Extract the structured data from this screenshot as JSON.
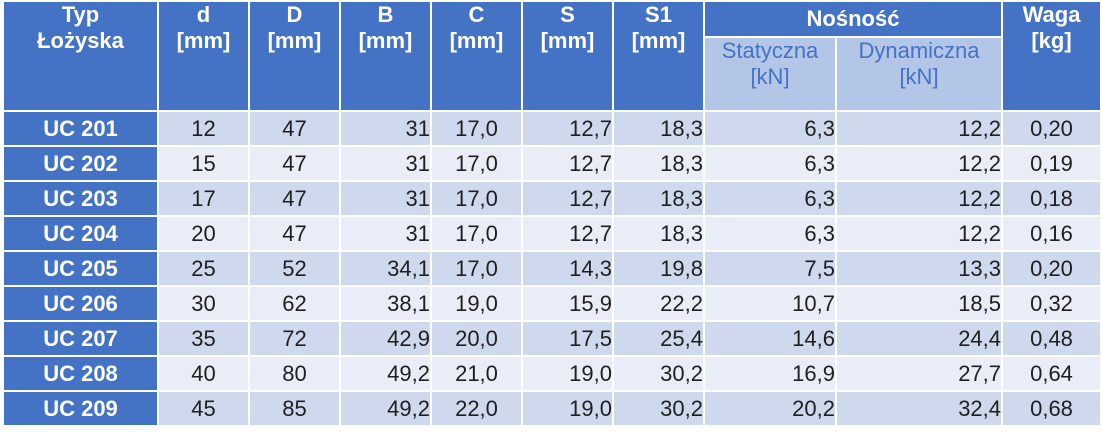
{
  "header": {
    "typ": [
      "Typ",
      "Łożyska"
    ],
    "d": [
      "d",
      "[mm]"
    ],
    "D": [
      "D",
      "[mm]"
    ],
    "B": [
      "B",
      "[mm]"
    ],
    "C": [
      "C",
      "[mm]"
    ],
    "S": [
      "S",
      "[mm]"
    ],
    "S1": [
      "S1",
      "[mm]"
    ],
    "nosnosc": "Nośność",
    "statyczna": [
      "Statyczna",
      "[kN]"
    ],
    "dynamiczna": [
      "Dynamiczna",
      "[kN]"
    ],
    "waga": [
      "Waga",
      "[kg]"
    ]
  },
  "rows": [
    [
      "UC 201",
      "12",
      "47",
      "31",
      "17,0",
      "12,7",
      "18,3",
      "6,3",
      "12,2",
      "0,20"
    ],
    [
      "UC 202",
      "15",
      "47",
      "31",
      "17,0",
      "12,7",
      "18,3",
      "6,3",
      "12,2",
      "0,19"
    ],
    [
      "UC 203",
      "17",
      "47",
      "31",
      "17,0",
      "12,7",
      "18,3",
      "6,3",
      "12,2",
      "0,18"
    ],
    [
      "UC 204",
      "20",
      "47",
      "31",
      "17,0",
      "12,7",
      "18,3",
      "6,3",
      "12,2",
      "0,16"
    ],
    [
      "UC 205",
      "25",
      "52",
      "34,1",
      "17,0",
      "14,3",
      "19,8",
      "7,5",
      "13,3",
      "0,20"
    ],
    [
      "UC 206",
      "30",
      "62",
      "38,1",
      "19,0",
      "15,9",
      "22,2",
      "10,7",
      "18,5",
      "0,32"
    ],
    [
      "UC 207",
      "35",
      "72",
      "42,9",
      "20,0",
      "17,5",
      "25,4",
      "14,6",
      "24,4",
      "0,48"
    ],
    [
      "UC 208",
      "40",
      "80",
      "49,2",
      "21,0",
      "19,0",
      "30,2",
      "16,9",
      "27,7",
      "0,64"
    ],
    [
      "UC 209",
      "45",
      "85",
      "49,2",
      "22,0",
      "19,0",
      "30,2",
      "20,2",
      "32,4",
      "0,68"
    ]
  ],
  "colors": {
    "header_bg": "#4472c4",
    "subheader_bg": "#b4c6e7",
    "row_odd_bg": "#cfd9ee",
    "row_even_bg": "#e8edf7"
  }
}
